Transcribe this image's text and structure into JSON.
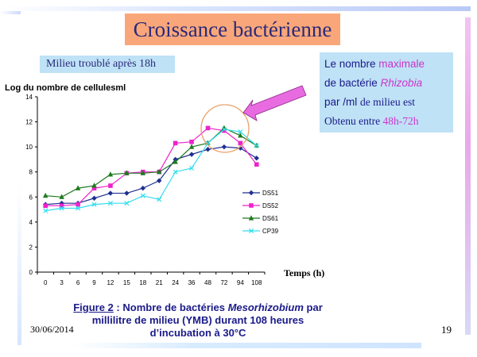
{
  "slide": {
    "title": "Croissance bactérienne",
    "milieu_note": "Milieu troublé après 18h",
    "info": {
      "line1_pre": "Le nombre ",
      "line1_mag": "maximale",
      "line2_pre": "de bactérie ",
      "line2_mag": "Rhizobia",
      "line3_a": "par /ml ",
      "line3_b": "de milieu  est",
      "line4_a": "Obtenu  entre ",
      "line4_mag": "48h-72h"
    },
    "caption": {
      "fig": "Figure 2",
      "sep": " : ",
      "text_a": "Nombre de bactéries ",
      "text_it": "Mesorhizobium",
      "text_b": " par",
      "line2": "millilitre de milieu (YMB) durant 108 heures",
      "line3": "d’incubation à 30°C"
    },
    "date": "30/06/2014",
    "page_number": "19",
    "colors": {
      "title_bg": "#f9a77a",
      "box_bg": "#bfe2f6",
      "accent_magenta": "#cc33cc",
      "arrow": "#e86be0",
      "circle": "#e8a26a"
    }
  },
  "chart_data": {
    "type": "line",
    "title": "",
    "ylabel": "Log du nombre de cellulesml",
    "xlabel": "Temps (h)",
    "categories": [
      "0",
      "3",
      "6",
      "9",
      "12",
      "15",
      "18",
      "21",
      "24",
      "36",
      "48",
      "72",
      "94",
      "108"
    ],
    "ylim": [
      0,
      14
    ],
    "yticks": [
      0,
      2,
      4,
      6,
      8,
      10,
      12,
      14
    ],
    "legend_position": "right",
    "grid": false,
    "series": [
      {
        "name": "DS51",
        "color": "#1f2f8f",
        "marker": "diamond",
        "values": [
          5.4,
          5.5,
          5.5,
          5.9,
          6.3,
          6.3,
          6.7,
          7.3,
          9.0,
          9.4,
          9.8,
          10.0,
          9.9,
          9.1
        ]
      },
      {
        "name": "DS52",
        "color": "#ee22cc",
        "marker": "square",
        "values": [
          5.3,
          5.3,
          5.4,
          6.7,
          6.9,
          7.9,
          8.0,
          8.0,
          10.3,
          10.4,
          11.5,
          11.3,
          10.3,
          8.6
        ]
      },
      {
        "name": "DS61",
        "color": "#1e7a1e",
        "marker": "triangle",
        "values": [
          6.1,
          6.0,
          6.7,
          6.9,
          7.8,
          7.9,
          7.9,
          8.0,
          8.8,
          10.0,
          10.3,
          11.5,
          10.9,
          10.1
        ]
      },
      {
        "name": "CP39",
        "color": "#33ddee",
        "marker": "cross",
        "values": [
          4.9,
          5.1,
          5.1,
          5.4,
          5.5,
          5.5,
          6.1,
          5.8,
          8.0,
          8.3,
          10.3,
          11.4,
          11.2,
          10.1
        ]
      }
    ]
  }
}
